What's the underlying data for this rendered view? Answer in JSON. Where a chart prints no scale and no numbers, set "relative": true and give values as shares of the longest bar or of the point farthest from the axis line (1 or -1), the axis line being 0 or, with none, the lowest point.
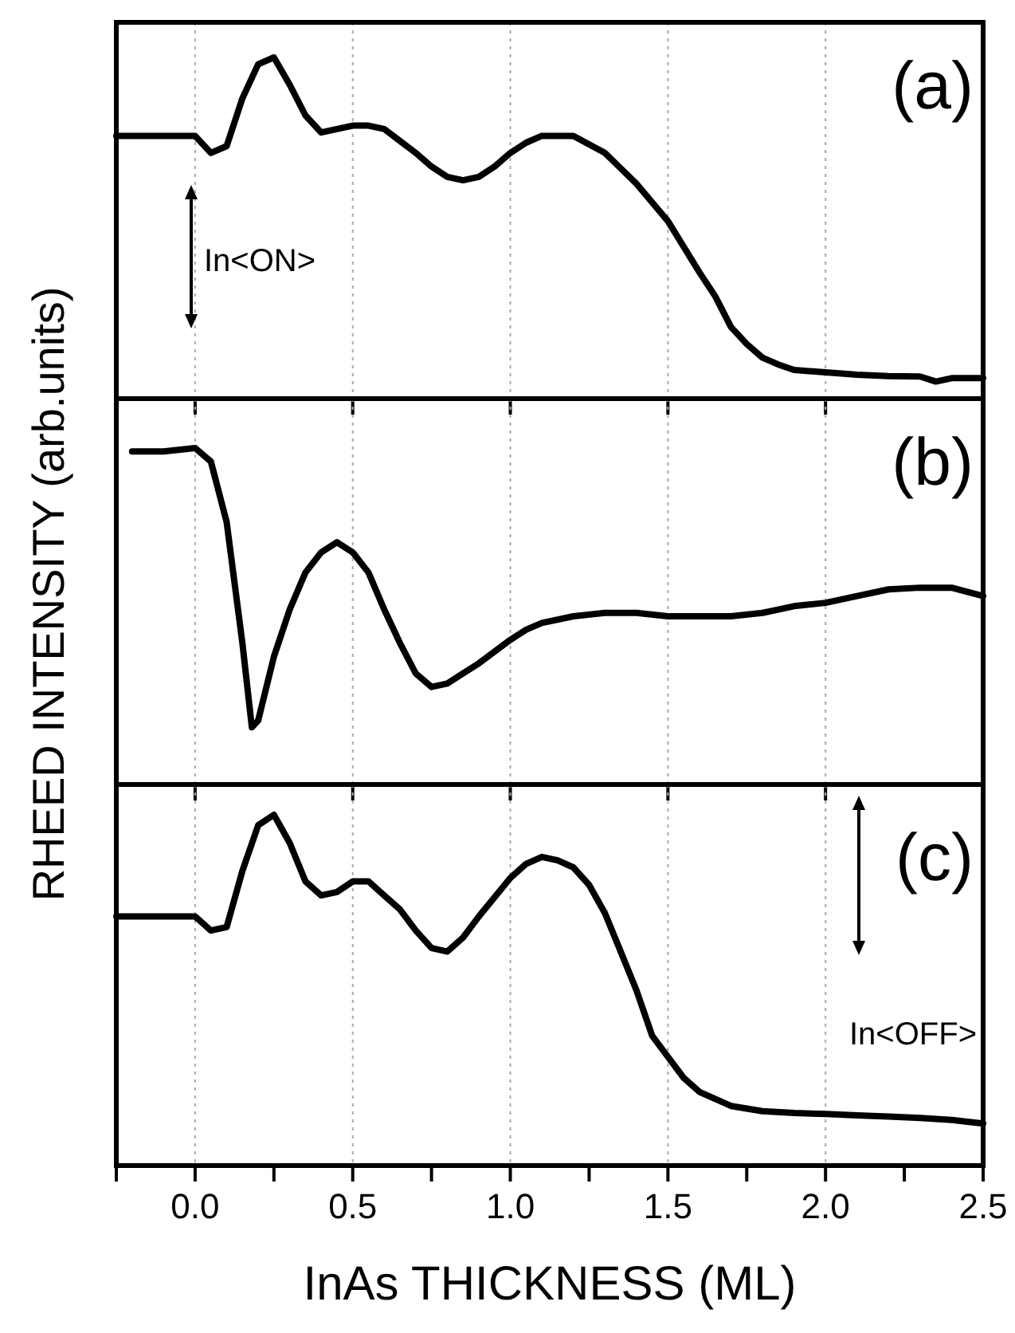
{
  "chart_data": [
    {
      "type": "line",
      "relative": true,
      "annotations": [
        "(a)",
        "In<ON>"
      ],
      "xlim": [
        -0.25,
        2.5
      ],
      "xticks": [
        {
          "value": 0,
          "label": null
        },
        {
          "value": 0.5,
          "label": null
        },
        {
          "value": 1,
          "label": null
        },
        {
          "value": 1.5,
          "label": null
        },
        {
          "value": 2,
          "label": null
        }
      ],
      "tick_labels": false,
      "grid": "x",
      "series": [
        {
          "color": "#000000",
          "x": [
            -0.25,
            0,
            0.05,
            0.1,
            0.15,
            0.2,
            0.25,
            0.3,
            0.35,
            0.4,
            0.45,
            0.5,
            0.55,
            0.6,
            0.7,
            0.75,
            0.8,
            0.85,
            0.9,
            0.95,
            1,
            1.05,
            1.1,
            1.15,
            1.2,
            1.3,
            1.4,
            1.5,
            1.6,
            1.65,
            1.7,
            1.75,
            1.8,
            1.85,
            1.9,
            2,
            2.1,
            2.2,
            2.3,
            2.35,
            2.4,
            2.5
          ],
          "values": [
            0.77,
            0.77,
            0.72,
            0.74,
            0.88,
            0.98,
            1,
            0.92,
            0.83,
            0.78,
            0.79,
            0.8,
            0.8,
            0.79,
            0.72,
            0.68,
            0.65,
            0.64,
            0.65,
            0.68,
            0.72,
            0.75,
            0.77,
            0.77,
            0.77,
            0.72,
            0.63,
            0.52,
            0.37,
            0.3,
            0.21,
            0.16,
            0.12,
            0.1,
            0.084,
            0.077,
            0.07,
            0.066,
            0.065,
            0.05,
            0.06,
            0.06
          ]
        }
      ]
    },
    {
      "type": "line",
      "relative": true,
      "ylabel": "RHEED INTENSITY (arb.units)",
      "annotations": [
        "(b)"
      ],
      "xlim": [
        -0.25,
        2.5
      ],
      "xticks": [
        {
          "value": 0,
          "label": null
        },
        {
          "value": 0.5,
          "label": null
        },
        {
          "value": 1,
          "label": null
        },
        {
          "value": 1.5,
          "label": null
        },
        {
          "value": 2,
          "label": null
        }
      ],
      "tick_labels": false,
      "grid": "x",
      "series": [
        {
          "color": "#000000",
          "x": [
            -0.2,
            -0.1,
            0,
            0.05,
            0.1,
            0.15,
            0.18,
            0.2,
            0.25,
            0.3,
            0.35,
            0.4,
            0.45,
            0.5,
            0.55,
            0.6,
            0.65,
            0.7,
            0.75,
            0.8,
            0.85,
            0.9,
            1,
            1.05,
            1.1,
            1.2,
            1.3,
            1.4,
            1.5,
            1.6,
            1.7,
            1.8,
            1.9,
            2,
            2.1,
            2.2,
            2.3,
            2.35,
            2.4,
            2.5
          ],
          "values": [
            0.99,
            0.99,
            1,
            0.96,
            0.78,
            0.42,
            0.17,
            0.19,
            0.38,
            0.52,
            0.63,
            0.69,
            0.72,
            0.69,
            0.63,
            0.52,
            0.42,
            0.33,
            0.29,
            0.3,
            0.33,
            0.36,
            0.43,
            0.46,
            0.48,
            0.5,
            0.51,
            0.51,
            0.5,
            0.5,
            0.5,
            0.51,
            0.53,
            0.54,
            0.56,
            0.58,
            0.585,
            0.585,
            0.585,
            0.56
          ]
        }
      ]
    },
    {
      "type": "line",
      "relative": true,
      "xlabel": "InAs THICKNESS (ML)",
      "annotations": [
        "(c)",
        "In<OFF>"
      ],
      "xlim": [
        -0.25,
        2.5
      ],
      "xticks": [
        {
          "value": -0.25,
          "label": null
        },
        {
          "value": 0,
          "label": "0.0"
        },
        {
          "value": 0.25,
          "label": null
        },
        {
          "value": 0.5,
          "label": "0.5"
        },
        {
          "value": 0.75,
          "label": null
        },
        {
          "value": 1,
          "label": "1.0"
        },
        {
          "value": 1.25,
          "label": null
        },
        {
          "value": 1.5,
          "label": "1.5"
        },
        {
          "value": 1.75,
          "label": null
        },
        {
          "value": 2,
          "label": "2.0"
        },
        {
          "value": 2.25,
          "label": null
        },
        {
          "value": 2.5,
          "label": "2.5"
        }
      ],
      "tick_labels": "x",
      "grid": "x",
      "series": [
        {
          "color": "#000000",
          "x": [
            -0.25,
            0,
            0.05,
            0.1,
            0.15,
            0.2,
            0.25,
            0.3,
            0.35,
            0.4,
            0.45,
            0.5,
            0.55,
            0.6,
            0.65,
            0.7,
            0.75,
            0.8,
            0.85,
            0.9,
            1,
            1.05,
            1.1,
            1.15,
            1.2,
            1.25,
            1.3,
            1.35,
            1.4,
            1.45,
            1.5,
            1.55,
            1.6,
            1.7,
            1.8,
            1.9,
            2,
            2.1,
            2.2,
            2.3,
            2.4,
            2.5
          ],
          "values": [
            0.71,
            0.71,
            0.67,
            0.68,
            0.84,
            0.97,
            1,
            0.92,
            0.81,
            0.77,
            0.78,
            0.81,
            0.81,
            0.77,
            0.73,
            0.67,
            0.62,
            0.61,
            0.65,
            0.71,
            0.82,
            0.86,
            0.88,
            0.87,
            0.85,
            0.8,
            0.72,
            0.61,
            0.5,
            0.37,
            0.31,
            0.25,
            0.21,
            0.17,
            0.155,
            0.15,
            0.147,
            0.143,
            0.14,
            0.136,
            0.13,
            0.12
          ]
        }
      ]
    }
  ]
}
